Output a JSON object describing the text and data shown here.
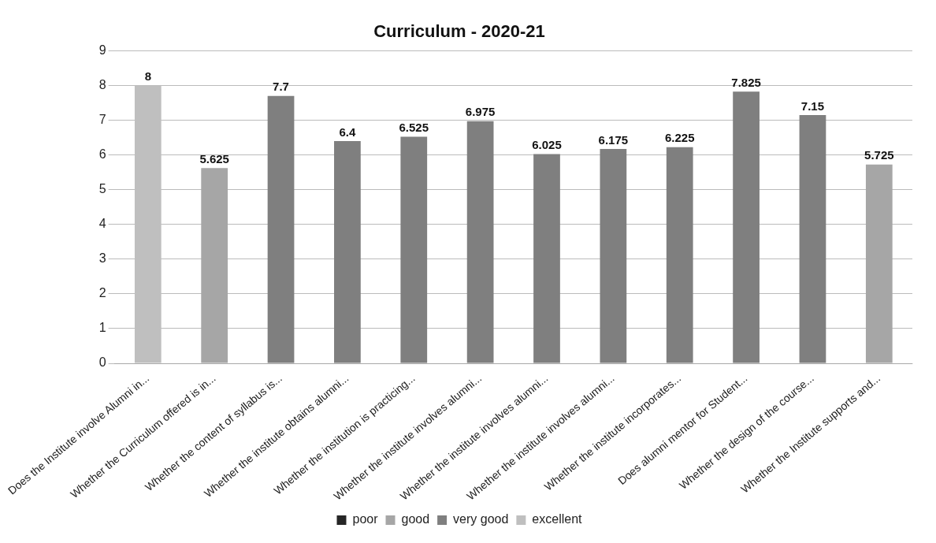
{
  "chart_data": {
    "type": "bar",
    "title": "Curriculum - 2020-21",
    "stacked": true,
    "categories": [
      "Does the Institute involve Alumni in...",
      "Whether the Curriculum offered is in...",
      "Whether the content of syllabus is...",
      "Whether the institute obtains alumni...",
      "Whether the institution is practicing...",
      "Whether the institute involves alumni...",
      "Whether the institute involves alumni...",
      "Whether the institute involves alumni...",
      "Whether the institute incorporates...",
      "Does alumni mentor for Student...",
      "Whether the design of the course...",
      "Whether the Institute supports and..."
    ],
    "series": [
      {
        "name": "poor",
        "color": "#262626",
        "values": [
          null,
          null,
          null,
          null,
          null,
          null,
          null,
          null,
          null,
          null,
          null,
          null
        ]
      },
      {
        "name": "good",
        "color": "#a6a6a6",
        "values": [
          null,
          5.625,
          null,
          null,
          null,
          null,
          null,
          null,
          null,
          null,
          null,
          5.725
        ]
      },
      {
        "name": "very good",
        "color": "#7f7f7f",
        "values": [
          null,
          null,
          7.7,
          6.4,
          6.525,
          6.975,
          6.025,
          6.175,
          6.225,
          7.825,
          7.15,
          null
        ]
      },
      {
        "name": "excellent",
        "color": "#bfbfbf",
        "values": [
          8,
          null,
          null,
          null,
          null,
          null,
          null,
          null,
          null,
          null,
          null,
          null
        ]
      }
    ],
    "ylim": [
      0,
      9
    ],
    "yticks": [
      0,
      1,
      2,
      3,
      4,
      5,
      6,
      7,
      8,
      9
    ],
    "grid": "y",
    "legend": "bottom",
    "data_labels": true
  }
}
